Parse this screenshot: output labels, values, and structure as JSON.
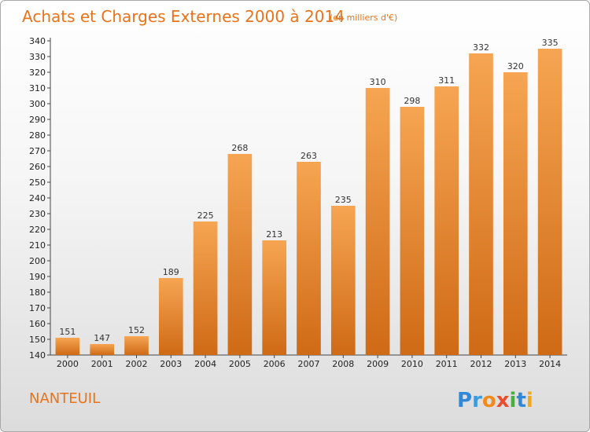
{
  "chart_data": {
    "type": "bar",
    "title": "Achats et Charges Externes 2000 à 2014",
    "subtitle": "(en milliers d'€)",
    "categories": [
      "2000",
      "2001",
      "2002",
      "2003",
      "2004",
      "2005",
      "2006",
      "2007",
      "2008",
      "2009",
      "2010",
      "2011",
      "2012",
      "2013",
      "2014"
    ],
    "values": [
      151,
      147,
      152,
      189,
      225,
      268,
      213,
      263,
      235,
      310,
      298,
      311,
      332,
      320,
      335
    ],
    "ylim": [
      140,
      340
    ],
    "ytick_step": 10,
    "grid": false,
    "bar_color": "#f0923a",
    "xlabel": "",
    "ylabel": ""
  },
  "commune": "NANTEUIL",
  "logo": {
    "letters": [
      {
        "ch": "P",
        "color": "#2f88d8"
      },
      {
        "ch": "r",
        "color": "#3a9be0"
      },
      {
        "ch": "o",
        "color": "#f08a1c"
      },
      {
        "ch": "x",
        "color": "#e84d2e"
      },
      {
        "ch": "i",
        "color": "#46b03a"
      },
      {
        "ch": "t",
        "color": "#2f88d8"
      },
      {
        "ch": "i",
        "color": "#f0a81c"
      }
    ]
  }
}
